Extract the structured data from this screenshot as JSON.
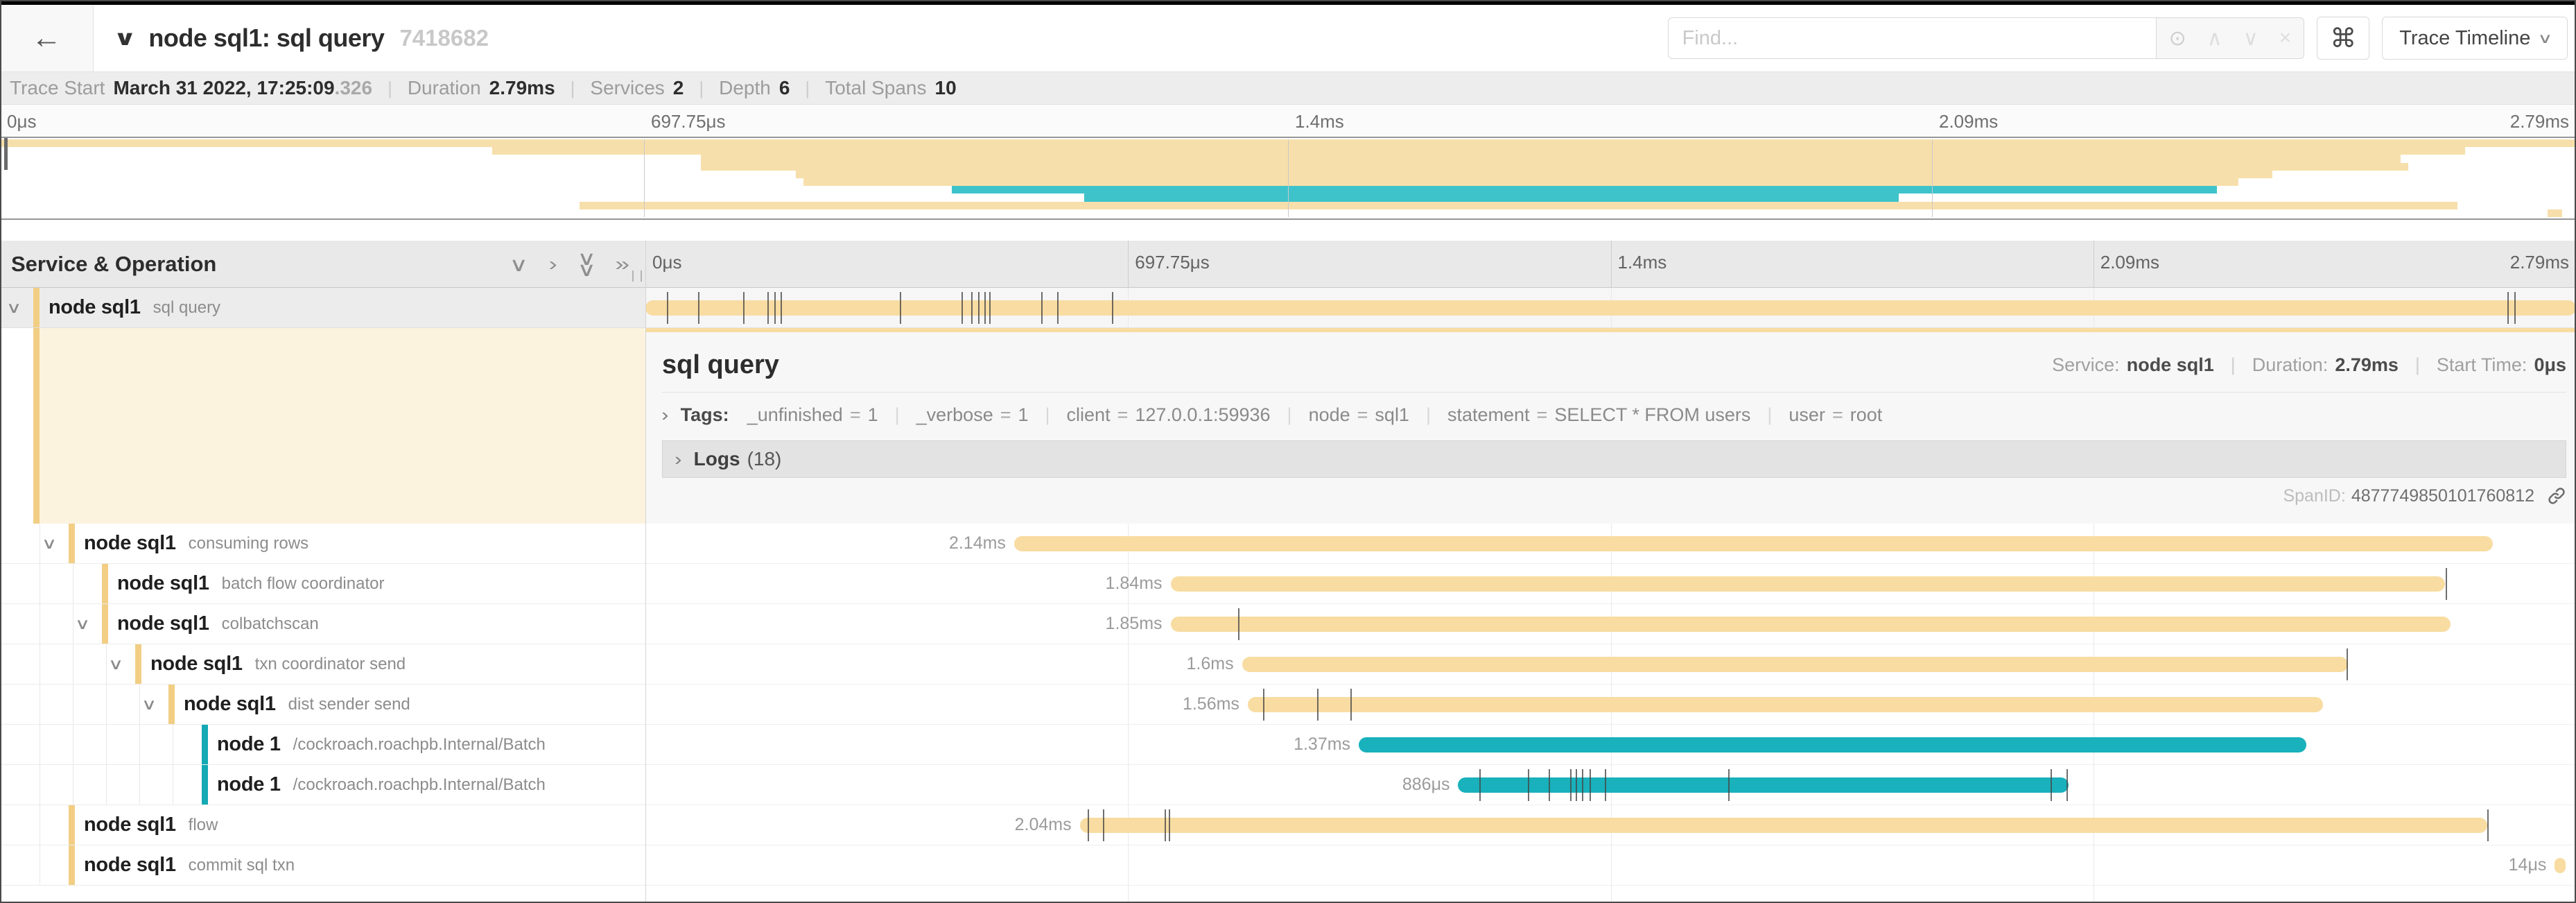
{
  "header": {
    "back_icon": "←",
    "collapse_icon": "∨",
    "title": "node sql1: sql query",
    "trace_id_short": "7418682",
    "find_placeholder": "Find...",
    "shortcut_icon": "⌘",
    "view_selector_label": "Trace Timeline",
    "view_selector_chevron": "∨"
  },
  "trace_info": {
    "items": [
      {
        "label": "Trace Start",
        "value": "March 31 2022, 17:25:09",
        "suffix": ".326"
      },
      {
        "label": "Duration",
        "value": "2.79ms"
      },
      {
        "label": "Services",
        "value": "2"
      },
      {
        "label": "Depth",
        "value": "6"
      },
      {
        "label": "Total Spans",
        "value": "10"
      }
    ]
  },
  "minimap": {
    "ruler_labels": [
      "0μs",
      "697.75μs",
      "1.4ms",
      "2.09ms",
      "2.79ms"
    ]
  },
  "timeline": {
    "left_header": "Service & Operation",
    "ruler_labels": [
      "0μs",
      "697.75μs",
      "1.4ms",
      "2.09ms",
      "2.79ms"
    ]
  },
  "detail": {
    "title": "sql query",
    "service_label": "Service:",
    "service": "node sql1",
    "duration_label": "Duration:",
    "duration": "2.79ms",
    "start_label": "Start Time:",
    "start": "0μs",
    "tags_label": "Tags:",
    "tags": [
      {
        "key": "_unfinished",
        "value": "1"
      },
      {
        "key": "_verbose",
        "value": "1"
      },
      {
        "key": "client",
        "value": "127.0.0.1:59936"
      },
      {
        "key": "node",
        "value": "sql1"
      },
      {
        "key": "statement",
        "value": "SELECT * FROM users"
      },
      {
        "key": "user",
        "value": "root"
      }
    ],
    "logs_label": "Logs",
    "logs_count": "(18)",
    "span_id_label": "SpanID:",
    "span_id": "4877749850101760812"
  },
  "colors": {
    "yellow_bar": "#F8DCA1",
    "yellow_accent": "#F2CE84",
    "yellow_minimap": "#F7DFAB",
    "teal_bar": "#18B1BC",
    "teal_accent": "#14A9B4",
    "teal_minimap": "#3FC3CB"
  },
  "chart_data": {
    "type": "gantt-trace",
    "title": "node sql1: sql query",
    "total_duration": "2.79ms",
    "axis_ticks": [
      "0μs",
      "697.75μs",
      "1.4ms",
      "2.09ms",
      "2.79ms"
    ],
    "spans": [
      {
        "service": "node sql1",
        "operation": "sql query",
        "depth": 0,
        "color": "yellow",
        "chevron": true,
        "selected": true,
        "start_pct": 0,
        "width_pct": 100,
        "duration_label": "",
        "ticks": [
          1.11,
          2.73,
          5.06,
          6.32,
          6.68,
          7.0,
          13.18,
          16.37,
          16.87,
          17.23,
          17.56,
          17.81,
          20.5,
          21.33,
          24.16,
          96.45,
          96.81
        ]
      },
      {
        "service": "node sql1",
        "operation": "consuming rows",
        "depth": 1,
        "color": "yellow",
        "chevron": true,
        "selected": false,
        "start_pct": 19.1,
        "width_pct": 76.6,
        "duration_label": "2.14ms",
        "ticks": []
      },
      {
        "service": "node sql1",
        "operation": "batch flow coordinator",
        "depth": 2,
        "color": "yellow",
        "chevron": false,
        "selected": false,
        "start_pct": 27.2,
        "width_pct": 66.0,
        "duration_label": "1.84ms",
        "ticks": [
          93.25
        ]
      },
      {
        "service": "node sql1",
        "operation": "colbatchscan",
        "depth": 2,
        "color": "yellow",
        "chevron": true,
        "selected": false,
        "start_pct": 27.2,
        "width_pct": 66.3,
        "duration_label": "1.85ms",
        "ticks": [
          30.7
        ]
      },
      {
        "service": "node sql1",
        "operation": "txn coordinator send",
        "depth": 3,
        "color": "yellow",
        "chevron": true,
        "selected": false,
        "start_pct": 30.9,
        "width_pct": 57.3,
        "duration_label": "1.6ms",
        "ticks": [
          88.1
        ]
      },
      {
        "service": "node sql1",
        "operation": "dist sender send",
        "depth": 4,
        "color": "yellow",
        "chevron": true,
        "selected": false,
        "start_pct": 31.2,
        "width_pct": 55.7,
        "duration_label": "1.56ms",
        "ticks": [
          32.0,
          34.8,
          36.5
        ]
      },
      {
        "service": "node 1",
        "operation": "/cockroach.roachpb.Internal/Batch",
        "depth": 5,
        "color": "teal",
        "chevron": false,
        "selected": false,
        "start_pct": 36.95,
        "width_pct": 49.1,
        "duration_label": "1.37ms",
        "ticks": []
      },
      {
        "service": "node 1",
        "operation": "/cockroach.roachpb.Internal/Batch",
        "depth": 5,
        "color": "teal",
        "chevron": false,
        "selected": false,
        "start_pct": 42.1,
        "width_pct": 31.6,
        "duration_label": "886μs",
        "ticks": [
          43.2,
          45.7,
          46.8,
          47.9,
          48.2,
          48.5,
          48.9,
          49.7,
          56.1,
          72.8,
          73.6
        ]
      },
      {
        "service": "node sql1",
        "operation": "flow",
        "depth": 1,
        "color": "yellow",
        "chevron": false,
        "selected": false,
        "start_pct": 22.5,
        "width_pct": 72.9,
        "duration_label": "2.04ms",
        "ticks": [
          22.9,
          23.7,
          26.9,
          27.1,
          95.4
        ]
      },
      {
        "service": "node sql1",
        "operation": "commit sql txn",
        "depth": 1,
        "color": "yellow",
        "chevron": false,
        "selected": false,
        "start_pct": 98.9,
        "width_pct": 0.55,
        "duration_label": "14μs",
        "ticks": []
      }
    ]
  }
}
